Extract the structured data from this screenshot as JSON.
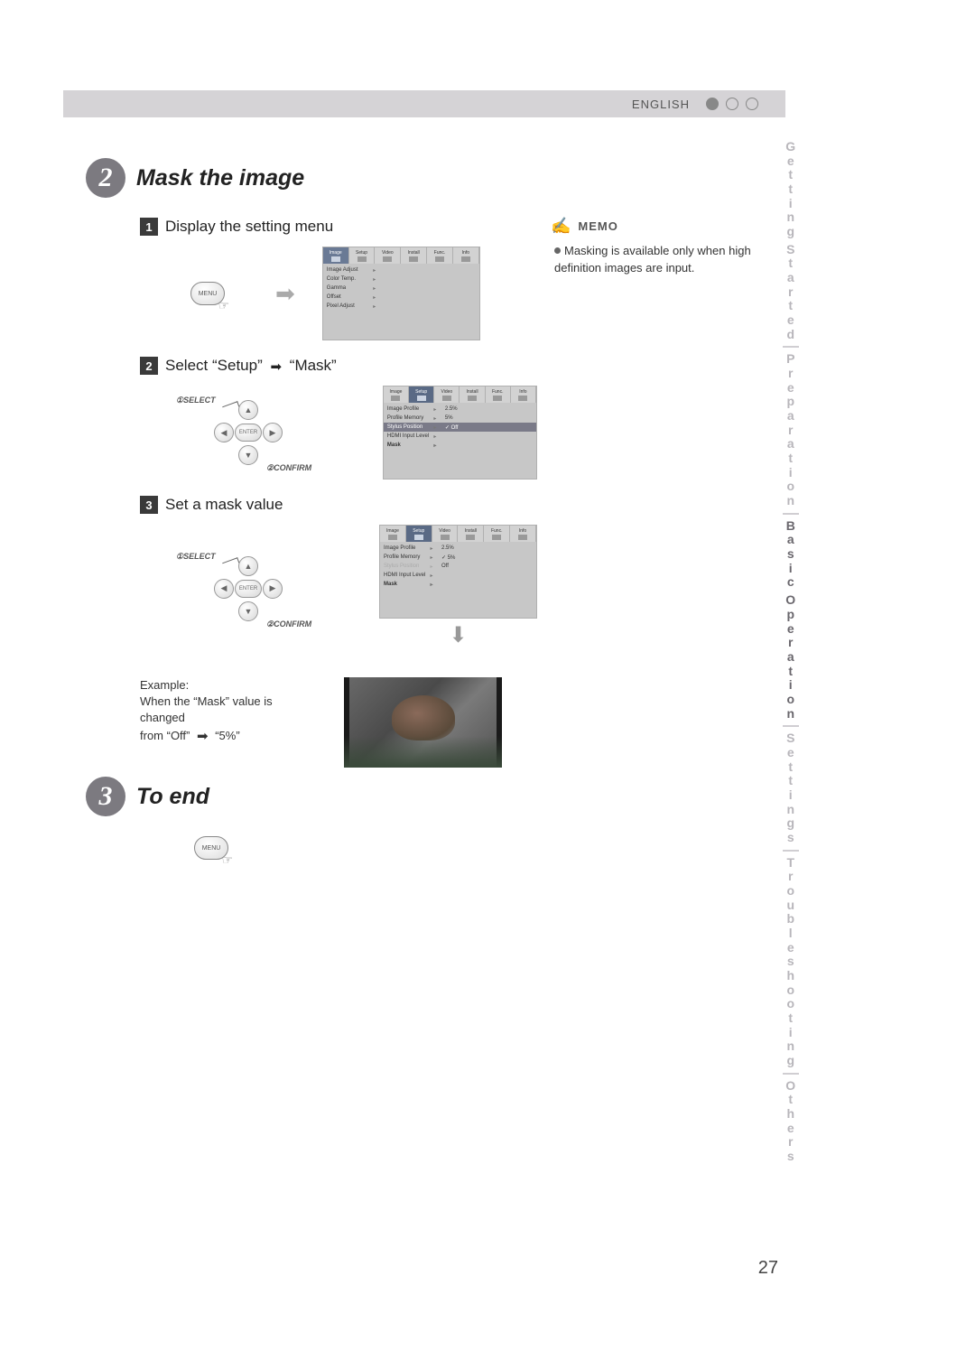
{
  "header": {
    "language": "ENGLISH"
  },
  "sideTabs": {
    "items": [
      "Getting Started",
      "Preparation",
      "Basic Operation",
      "Settings",
      "Troubleshooting",
      "Others"
    ],
    "activeIndex": 2
  },
  "section2": {
    "number": "2",
    "title": "Mask the image",
    "steps": {
      "s1": {
        "num": "1",
        "text": "Display the setting menu"
      },
      "s2": {
        "num": "2",
        "textPrefix": "Select ",
        "q1": "“Setup”",
        "q2": "“Mask”"
      },
      "s3": {
        "num": "3",
        "text": "Set a mask value"
      }
    },
    "controller": {
      "selectLabel": "SELECT",
      "confirmLabel": "CONFIRM",
      "selectNum": "①",
      "confirmNum": "②",
      "enter": "ENTER"
    },
    "menuButton": "MENU",
    "osd1": {
      "tabs": [
        "Image",
        "Setup",
        "Video",
        "Install",
        "Func.",
        "Info"
      ],
      "selected": 0,
      "rows": [
        {
          "k": "Image Adjust",
          "v": ""
        },
        {
          "k": "Color Temp.",
          "v": ""
        },
        {
          "k": "Gamma",
          "v": ""
        },
        {
          "k": "Offset",
          "v": ""
        },
        {
          "k": "Pixel Adjust",
          "v": ""
        }
      ]
    },
    "osd2": {
      "tabs": [
        "Image",
        "Setup",
        "Video",
        "Install",
        "Func.",
        "Info"
      ],
      "selected": 1,
      "rows": [
        {
          "k": "Image Profile",
          "v": "2.5%"
        },
        {
          "k": "Profile Memory",
          "v": "5%"
        },
        {
          "k": "Stylus Position",
          "v": "✓ Off",
          "hl": true
        },
        {
          "k": "HDMI Input Level",
          "v": ""
        },
        {
          "k": "Mask",
          "v": "",
          "bold": true
        }
      ]
    },
    "osd3": {
      "tabs": [
        "Image",
        "Setup",
        "Video",
        "Install",
        "Func.",
        "Info"
      ],
      "selected": 1,
      "rows": [
        {
          "k": "Image Profile",
          "v": "2.5%"
        },
        {
          "k": "Profile Memory",
          "v": "✓ 5%"
        },
        {
          "k": "Stylus Position",
          "v": "Off",
          "dim": true
        },
        {
          "k": "HDMI Input Level",
          "v": ""
        },
        {
          "k": "Mask",
          "v": "",
          "bold": true
        }
      ]
    },
    "example": {
      "label": "Example:",
      "line1": "When the “Mask” value is changed",
      "line2a": "from “Off”",
      "line2b": "“5%”"
    }
  },
  "section3": {
    "number": "3",
    "title": "To end"
  },
  "memo": {
    "heading": "MEMO",
    "text": "Masking is available only when high definition images are input."
  },
  "pageNumber": "27"
}
